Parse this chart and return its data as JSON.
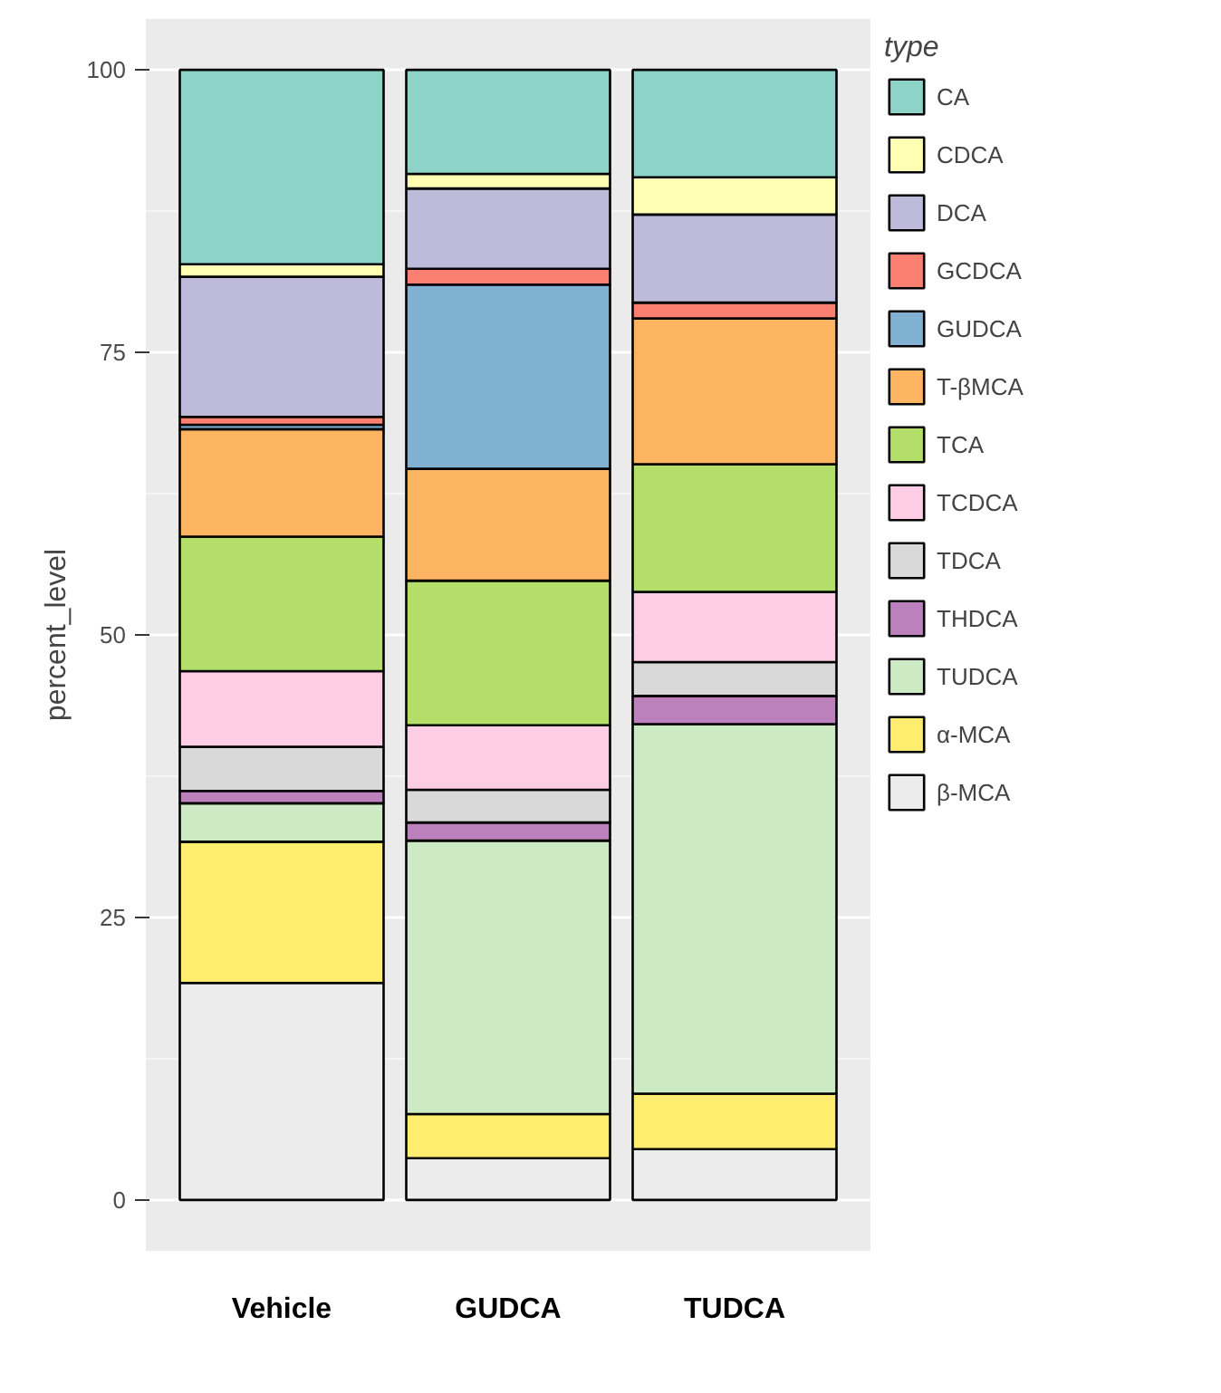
{
  "chart_data": {
    "type": "bar",
    "stacked": true,
    "ylabel": "percent_level",
    "legend_title": "type",
    "legend": "right",
    "grid": "y",
    "categories": [
      "Vehicle",
      "GUDCA",
      "TUDCA"
    ],
    "ylim": [
      -4.5,
      104.5
    ],
    "yticks": [
      0,
      25,
      50,
      75,
      100
    ],
    "series": [
      {
        "name": "β-MCA",
        "color": "#ececec",
        "values": [
          19.2,
          3.7,
          4.5
        ]
      },
      {
        "name": "α-MCA",
        "color": "#ffed6f",
        "values": [
          12.5,
          3.9,
          4.9
        ]
      },
      {
        "name": "TUDCA",
        "color": "#ccebc5",
        "values": [
          3.4,
          24.2,
          32.7
        ]
      },
      {
        "name": "THDCA",
        "color": "#bc80bd",
        "values": [
          1.1,
          1.6,
          2.5
        ]
      },
      {
        "name": "TDCA",
        "color": "#d9d9d9",
        "values": [
          3.9,
          2.9,
          3.0
        ]
      },
      {
        "name": "TCDCA",
        "color": "#fccde5",
        "values": [
          6.7,
          5.7,
          6.2
        ]
      },
      {
        "name": "TCA",
        "color": "#b3de69",
        "values": [
          11.9,
          12.8,
          11.3
        ]
      },
      {
        "name": "T-βMCA",
        "color": "#fdb462",
        "values": [
          9.5,
          9.9,
          12.9
        ]
      },
      {
        "name": "GUDCA",
        "color": "#80b1d3",
        "values": [
          0.4,
          16.3,
          0
        ]
      },
      {
        "name": "GCDCA",
        "color": "#fb8072",
        "values": [
          0.7,
          1.4,
          1.4
        ]
      },
      {
        "name": "DCA",
        "color": "#bebada",
        "values": [
          12.4,
          7.1,
          7.8
        ]
      },
      {
        "name": "CDCA",
        "color": "#ffffb3",
        "values": [
          1.1,
          1.3,
          3.3
        ]
      },
      {
        "name": "CA",
        "color": "#8dd3c7",
        "values": [
          17.2,
          9.2,
          9.5
        ]
      }
    ]
  }
}
